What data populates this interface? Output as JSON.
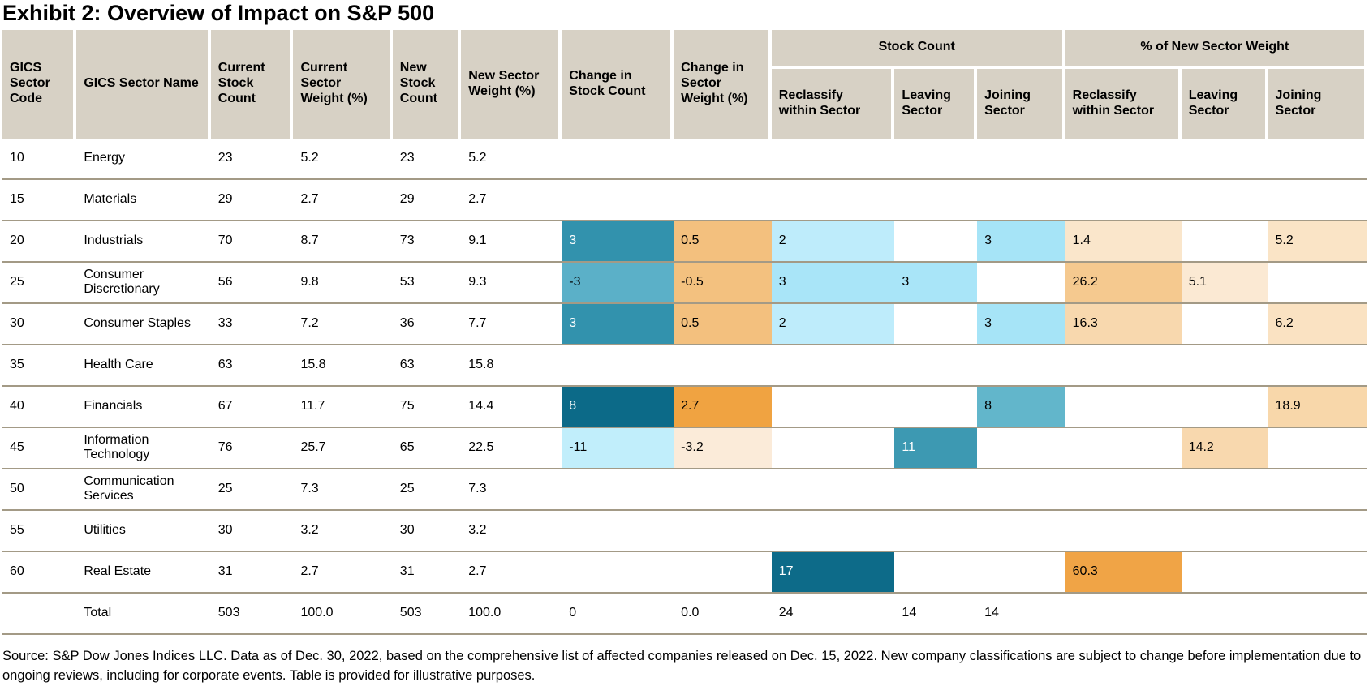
{
  "title": "Exhibit 2: Overview of Impact on S&P 500",
  "source_note": "Source: S&P Dow Jones Indices LLC. Data as of Dec. 30, 2022, based on the comprehensive list of affected companies released on Dec. 15, 2022. New company classifications are subject to change before implementation due to ongoing reviews, including for corporate events. Table is provided for illustrative purposes.",
  "colors": {
    "header_bg": "#D7D1C5",
    "row_border": "#A39A86",
    "teal_scale": [
      "#C1EEFB",
      "#A6E4F7",
      "#5BB0C8",
      "#3292AD",
      "#0C6A88"
    ],
    "orange_scale": [
      "#FBEBD9",
      "#F8D8AE",
      "#F3C07E",
      "#F0A341"
    ]
  },
  "chart_data": {
    "type": "table",
    "title": "Exhibit 2: Overview of Impact on S&P 500",
    "headers": {
      "code": "GICS Sector Code",
      "name": "GICS Sector Name",
      "current_count": "Current Stock Count",
      "current_weight": "Current Sector Weight (%)",
      "new_count": "New Stock Count",
      "new_weight": "New Sector Weight (%)",
      "change_count": "Change in Stock Count",
      "change_weight": "Change in Sector Weight (%)",
      "group_stock_count": "Stock Count",
      "group_pct_weight": "% of New Sector Weight",
      "subheaders": [
        "Reclassify within Sector",
        "Leaving Sector",
        "Joining Sector",
        "Reclassify within Sector",
        "Leaving Sector",
        "Joining Sector"
      ]
    },
    "row_keys": [
      "code",
      "name",
      "current_count",
      "current_weight",
      "new_count",
      "new_weight",
      "change_count",
      "change_weight",
      "sc_reclassify",
      "sc_leaving",
      "sc_joining",
      "pw_reclassify",
      "pw_leaving",
      "pw_joining"
    ],
    "rows": [
      {
        "code": "10",
        "name": "Energy",
        "current_count": "23",
        "current_weight": "5.2",
        "new_count": "23",
        "new_weight": "5.2",
        "change_count": "",
        "change_weight": "",
        "sc_reclassify": "",
        "sc_leaving": "",
        "sc_joining": "",
        "pw_reclassify": "",
        "pw_leaving": "",
        "pw_joining": ""
      },
      {
        "code": "15",
        "name": "Materials",
        "current_count": "29",
        "current_weight": "2.7",
        "new_count": "29",
        "new_weight": "2.7",
        "change_count": "",
        "change_weight": "",
        "sc_reclassify": "",
        "sc_leaving": "",
        "sc_joining": "",
        "pw_reclassify": "",
        "pw_leaving": "",
        "pw_joining": ""
      },
      {
        "code": "20",
        "name": "Industrials",
        "current_count": "70",
        "current_weight": "8.7",
        "new_count": "73",
        "new_weight": "9.1",
        "change_count": {
          "v": "3",
          "bg": "#3292AD",
          "fg": "#FFFFFF"
        },
        "change_weight": {
          "v": "0.5",
          "bg": "#F3C07E"
        },
        "sc_reclassify": {
          "v": "2",
          "bg": "#BEECFB"
        },
        "sc_leaving": "",
        "sc_joining": {
          "v": "3",
          "bg": "#A6E4F7"
        },
        "pw_reclassify": {
          "v": "1.4",
          "bg": "#FAE6CB"
        },
        "pw_leaving": "",
        "pw_joining": {
          "v": "5.2",
          "bg": "#FAE4C6"
        }
      },
      {
        "code": "25",
        "name": "Consumer Discretionary",
        "current_count": "56",
        "current_weight": "9.8",
        "new_count": "53",
        "new_weight": "9.3",
        "change_count": {
          "v": "-3",
          "bg": "#5BB0C8"
        },
        "change_weight": {
          "v": "-0.5",
          "bg": "#F3C17F"
        },
        "sc_reclassify": {
          "v": "3",
          "bg": "#A9E5F8"
        },
        "sc_leaving": {
          "v": "3",
          "bg": "#A9E5F8"
        },
        "sc_joining": "",
        "pw_reclassify": {
          "v": "26.2",
          "bg": "#F5C98F"
        },
        "pw_leaving": {
          "v": "5.1",
          "bg": "#FBE9D3"
        },
        "pw_joining": ""
      },
      {
        "code": "30",
        "name": "Consumer Staples",
        "current_count": "33",
        "current_weight": "7.2",
        "new_count": "36",
        "new_weight": "7.7",
        "change_count": {
          "v": "3",
          "bg": "#3292AD",
          "fg": "#FFFFFF"
        },
        "change_weight": {
          "v": "0.5",
          "bg": "#F3C07E"
        },
        "sc_reclassify": {
          "v": "2",
          "bg": "#BEECFB"
        },
        "sc_leaving": "",
        "sc_joining": {
          "v": "3",
          "bg": "#A6E4F7"
        },
        "pw_reclassify": {
          "v": "16.3",
          "bg": "#F8D8AE"
        },
        "pw_leaving": "",
        "pw_joining": {
          "v": "6.2",
          "bg": "#FAE2C2"
        }
      },
      {
        "code": "35",
        "name": "Health Care",
        "current_count": "63",
        "current_weight": "15.8",
        "new_count": "63",
        "new_weight": "15.8",
        "change_count": "",
        "change_weight": "",
        "sc_reclassify": "",
        "sc_leaving": "",
        "sc_joining": "",
        "pw_reclassify": "",
        "pw_leaving": "",
        "pw_joining": ""
      },
      {
        "code": "40",
        "name": "Financials",
        "current_count": "67",
        "current_weight": "11.7",
        "new_count": "75",
        "new_weight": "14.4",
        "change_count": {
          "v": "8",
          "bg": "#0C6A88",
          "fg": "#FFFFFF"
        },
        "change_weight": {
          "v": "2.7",
          "bg": "#F0A341"
        },
        "sc_reclassify": "",
        "sc_leaving": "",
        "sc_joining": {
          "v": "8",
          "bg": "#62B6CB"
        },
        "pw_reclassify": "",
        "pw_leaving": "",
        "pw_joining": {
          "v": "18.9",
          "bg": "#F8D7AA"
        }
      },
      {
        "code": "45",
        "name": "Information Technology",
        "current_count": "76",
        "current_weight": "25.7",
        "new_count": "65",
        "new_weight": "22.5",
        "change_count": {
          "v": "-11",
          "bg": "#C1EEFB"
        },
        "change_weight": {
          "v": "-3.2",
          "bg": "#FBEBD9"
        },
        "sc_reclassify": "",
        "sc_leaving": {
          "v": "11",
          "bg": "#3D99B2",
          "fg": "#FFFFFF"
        },
        "sc_joining": "",
        "pw_reclassify": "",
        "pw_leaving": {
          "v": "14.2",
          "bg": "#F8D8AE"
        },
        "pw_joining": ""
      },
      {
        "code": "50",
        "name": "Communication Services",
        "current_count": "25",
        "current_weight": "7.3",
        "new_count": "25",
        "new_weight": "7.3",
        "change_count": "",
        "change_weight": "",
        "sc_reclassify": "",
        "sc_leaving": "",
        "sc_joining": "",
        "pw_reclassify": "",
        "pw_leaving": "",
        "pw_joining": ""
      },
      {
        "code": "55",
        "name": "Utilities",
        "current_count": "30",
        "current_weight": "3.2",
        "new_count": "30",
        "new_weight": "3.2",
        "change_count": "",
        "change_weight": "",
        "sc_reclassify": "",
        "sc_leaving": "",
        "sc_joining": "",
        "pw_reclassify": "",
        "pw_leaving": "",
        "pw_joining": ""
      },
      {
        "code": "60",
        "name": "Real Estate",
        "current_count": "31",
        "current_weight": "2.7",
        "new_count": "31",
        "new_weight": "2.7",
        "change_count": "",
        "change_weight": "",
        "sc_reclassify": {
          "v": "17",
          "bg": "#0D6B89",
          "fg": "#FFFFFF"
        },
        "sc_leaving": "",
        "sc_joining": "",
        "pw_reclassify": {
          "v": "60.3",
          "bg": "#F0A446"
        },
        "pw_leaving": "",
        "pw_joining": ""
      },
      {
        "is_total": true,
        "code": "",
        "name": "Total",
        "current_count": "503",
        "current_weight": "100.0",
        "new_count": "503",
        "new_weight": "100.0",
        "change_count": "0",
        "change_weight": "0.0",
        "sc_reclassify": "24",
        "sc_leaving": "14",
        "sc_joining": "14",
        "pw_reclassify": "",
        "pw_leaving": "",
        "pw_joining": ""
      }
    ]
  }
}
